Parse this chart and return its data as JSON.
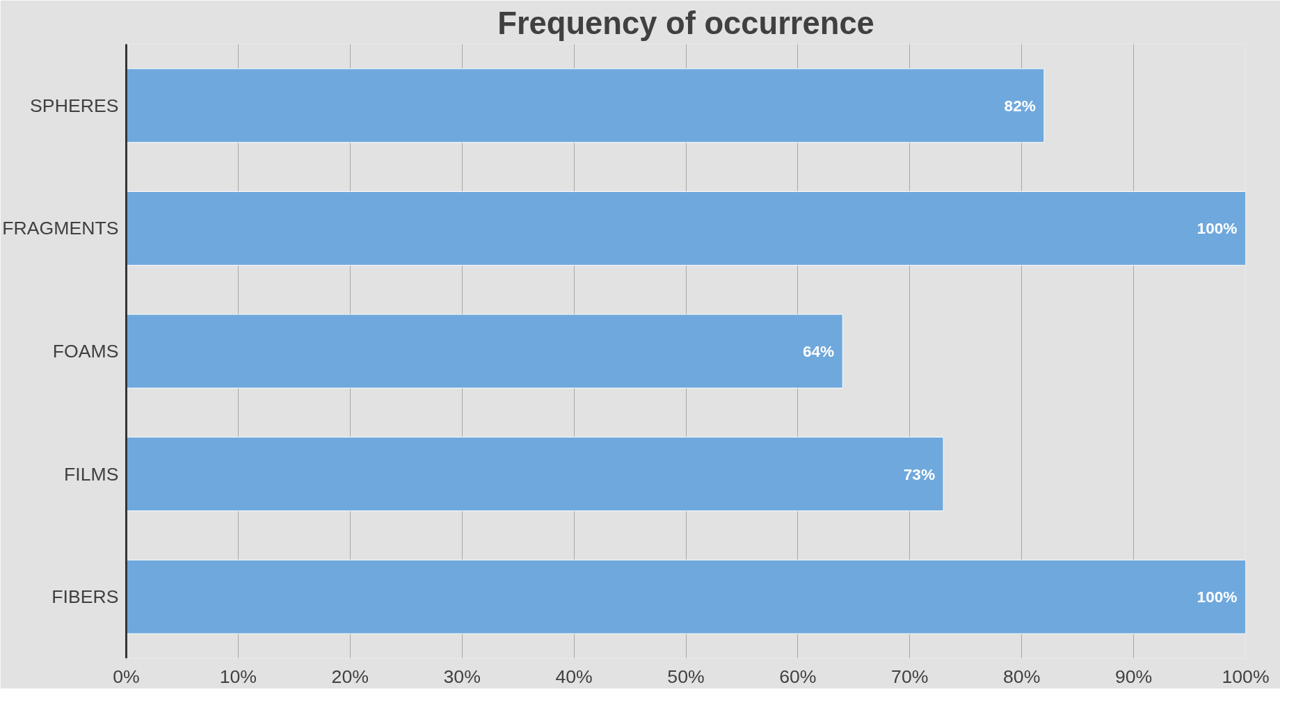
{
  "chart_data": {
    "type": "bar",
    "orientation": "horizontal",
    "title": "Frequency of occurrence",
    "categories": [
      "SPHERES",
      "FRAGMENTS",
      "FOAMS",
      "FILMS",
      "FIBERS"
    ],
    "values": [
      82,
      100,
      64,
      73,
      100
    ],
    "value_labels": [
      "82%",
      "100%",
      "64%",
      "73%",
      "100%"
    ],
    "color": "#6fa8dc",
    "xlim": [
      0,
      100
    ],
    "xticks": [
      {
        "value": 0,
        "label": "0%"
      },
      {
        "value": 10,
        "label": "10%"
      },
      {
        "value": 20,
        "label": "20%"
      },
      {
        "value": 30,
        "label": "30%"
      },
      {
        "value": 40,
        "label": "40%"
      },
      {
        "value": 50,
        "label": "50%"
      },
      {
        "value": 60,
        "label": "60%"
      },
      {
        "value": 70,
        "label": "70%"
      },
      {
        "value": 80,
        "label": "80%"
      },
      {
        "value": 90,
        "label": "90%"
      },
      {
        "value": 100,
        "label": "100%"
      }
    ],
    "grid": "x"
  }
}
